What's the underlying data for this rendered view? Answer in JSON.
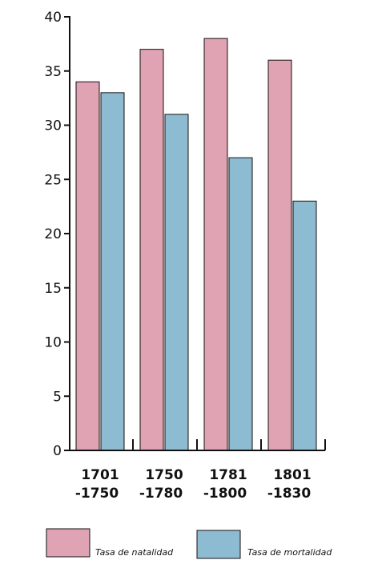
{
  "chart_data": {
    "type": "bar",
    "categories": [
      [
        "1701",
        "-1750"
      ],
      [
        "1750",
        "-1780"
      ],
      [
        "1781",
        "-1800"
      ],
      [
        "1801",
        "-1830"
      ]
    ],
    "series": [
      {
        "name": "Tasa de natalidad",
        "color": "#e0a3b3",
        "values": [
          34,
          37,
          38,
          36
        ]
      },
      {
        "name": "Tasa de mortalidad",
        "color": "#8dbcd2",
        "values": [
          33,
          31,
          27,
          23
        ]
      }
    ],
    "title": "",
    "xlabel": "",
    "ylabel": "",
    "ylim": [
      0,
      40
    ],
    "yticks": [
      0,
      5,
      10,
      15,
      20,
      25,
      30,
      35,
      40
    ],
    "grid": false,
    "legend": "bottom"
  }
}
